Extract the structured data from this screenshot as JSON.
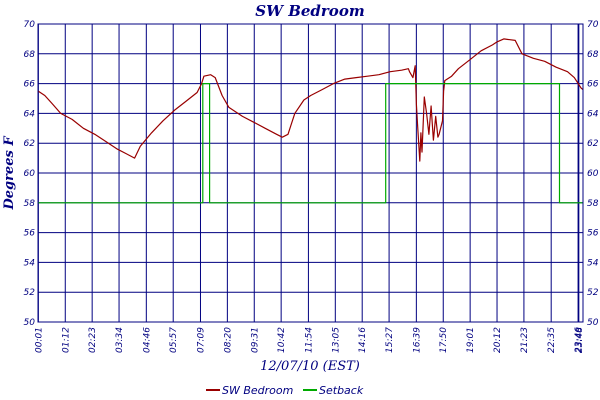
{
  "chart_data": {
    "type": "line",
    "title": "SW Bedroom",
    "xlabel": "12/07/10 (EST)",
    "ylabel": "Degrees F",
    "ylim": [
      50,
      70
    ],
    "yticks": [
      50,
      52,
      54,
      56,
      58,
      60,
      62,
      64,
      66,
      68,
      70
    ],
    "xlim_hours": [
      0,
      23.9833
    ],
    "grid": true,
    "legend_position": "bottom-center",
    "xtick_labels": [
      "00:01",
      "01:12",
      "02:23",
      "03:34",
      "04:46",
      "05:57",
      "07:09",
      "08:20",
      "09:31",
      "10:42",
      "11:54",
      "13:05",
      "14:16",
      "15:27",
      "16:39",
      "17:50",
      "19:01",
      "20:12",
      "21:23",
      "22:35",
      "23:46",
      "23:48"
    ],
    "xtick_hours": [
      0.0167,
      1.2,
      2.3833,
      3.5667,
      4.7667,
      5.95,
      7.15,
      8.3333,
      9.5167,
      10.7,
      11.9,
      13.0833,
      14.2667,
      15.45,
      16.65,
      17.8333,
      19.0167,
      20.2,
      21.3833,
      22.5833,
      23.7667,
      23.8
    ],
    "series": [
      {
        "name": "SW Bedroom",
        "color": "#990000",
        "points": [
          [
            0.0,
            65.5
          ],
          [
            0.3,
            65.2
          ],
          [
            0.6,
            64.7
          ],
          [
            1.0,
            64.0
          ],
          [
            1.5,
            63.6
          ],
          [
            2.0,
            63.0
          ],
          [
            2.5,
            62.6
          ],
          [
            3.0,
            62.1
          ],
          [
            3.5,
            61.6
          ],
          [
            4.0,
            61.2
          ],
          [
            4.25,
            61.0
          ],
          [
            4.5,
            61.8
          ],
          [
            5.0,
            62.7
          ],
          [
            5.5,
            63.5
          ],
          [
            6.0,
            64.2
          ],
          [
            6.5,
            64.8
          ],
          [
            7.0,
            65.4
          ],
          [
            7.2,
            66.0
          ],
          [
            7.3,
            66.5
          ],
          [
            7.6,
            66.6
          ],
          [
            7.8,
            66.4
          ],
          [
            8.1,
            65.2
          ],
          [
            8.4,
            64.4
          ],
          [
            9.0,
            63.8
          ],
          [
            9.5,
            63.4
          ],
          [
            10.0,
            63.0
          ],
          [
            10.5,
            62.6
          ],
          [
            10.75,
            62.4
          ],
          [
            11.0,
            62.6
          ],
          [
            11.3,
            64.0
          ],
          [
            11.7,
            64.9
          ],
          [
            12.0,
            65.2
          ],
          [
            12.5,
            65.6
          ],
          [
            13.0,
            66.0
          ],
          [
            13.5,
            66.3
          ],
          [
            14.0,
            66.4
          ],
          [
            14.5,
            66.5
          ],
          [
            15.0,
            66.6
          ],
          [
            15.5,
            66.8
          ],
          [
            16.0,
            66.9
          ],
          [
            16.3,
            67.0
          ],
          [
            16.35,
            66.8
          ],
          [
            16.5,
            66.4
          ],
          [
            16.6,
            67.2
          ],
          [
            16.65,
            64.6
          ],
          [
            16.7,
            63.3
          ],
          [
            16.8,
            60.8
          ],
          [
            16.85,
            62.7
          ],
          [
            16.9,
            61.4
          ],
          [
            17.0,
            65.1
          ],
          [
            17.1,
            64.0
          ],
          [
            17.2,
            62.6
          ],
          [
            17.3,
            64.5
          ],
          [
            17.4,
            62.2
          ],
          [
            17.5,
            63.8
          ],
          [
            17.6,
            62.4
          ],
          [
            17.65,
            62.6
          ],
          [
            17.8,
            63.5
          ],
          [
            17.85,
            65.5
          ],
          [
            17.9,
            66.2
          ],
          [
            18.2,
            66.5
          ],
          [
            18.5,
            67.0
          ],
          [
            19.0,
            67.6
          ],
          [
            19.5,
            68.2
          ],
          [
            20.0,
            68.6
          ],
          [
            20.2,
            68.8
          ],
          [
            20.5,
            69.0
          ],
          [
            21.0,
            68.9
          ],
          [
            21.3,
            68.0
          ],
          [
            21.8,
            67.7
          ],
          [
            22.3,
            67.5
          ],
          [
            22.8,
            67.1
          ],
          [
            23.3,
            66.8
          ],
          [
            23.6,
            66.4
          ],
          [
            23.9,
            65.7
          ],
          [
            23.98,
            65.6
          ]
        ]
      },
      {
        "name": "Setback",
        "color": "#00aa00",
        "points": [
          [
            0.0,
            58
          ],
          [
            7.25,
            58
          ],
          [
            7.25,
            66
          ],
          [
            7.55,
            66
          ],
          [
            7.55,
            58
          ],
          [
            15.3,
            58
          ],
          [
            15.3,
            66
          ],
          [
            22.95,
            66
          ],
          [
            22.95,
            58
          ],
          [
            23.98,
            58
          ]
        ]
      }
    ]
  }
}
